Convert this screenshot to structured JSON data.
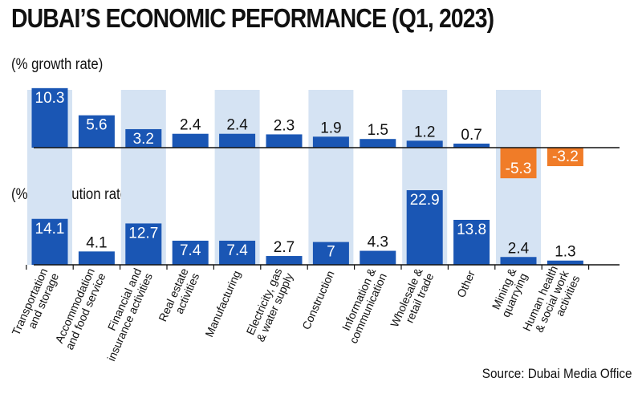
{
  "title": "DUBAI’S ECONOMIC PEFORMANCE (Q1, 2023)",
  "source": "Source: Dubai Media Office",
  "colors": {
    "blue": "#1a56b4",
    "orange": "#f07c28",
    "shade": "#d5e3f3",
    "axis": "#111111"
  },
  "chart_data": [
    {
      "type": "bar",
      "title": "% growth rate",
      "label": "(% growth rate)",
      "categories": [
        "Transportation and storage",
        "Accommodation and food service",
        "Financial and insurance activities",
        "Real estate activities",
        "Manufacturing",
        "Electricity, gas & water supply",
        "Construction",
        "Information & communication",
        "Wholesale & retail trade",
        "Other",
        "Mining & quarrying",
        "Human health & social work activities"
      ],
      "values": [
        10.3,
        5.6,
        3.2,
        2.4,
        2.4,
        2.3,
        1.9,
        1.5,
        1.2,
        0.7,
        -5.3,
        -3.2
      ],
      "value_labels": [
        "10.3",
        "5.6",
        "3.2",
        "2.4",
        "2.4",
        "2.3",
        "1.9",
        "1.5",
        "1.2",
        "0.7",
        "-5.3",
        "-3.2"
      ],
      "ylim": [
        -5.3,
        10.3
      ]
    },
    {
      "type": "bar",
      "title": "% contribution rate",
      "label": "(% contribution rate)",
      "categories": [
        "Transportation and storage",
        "Accommodation and food service",
        "Financial and insurance activities",
        "Real estate activities",
        "Manufacturing",
        "Electricity, gas & water supply",
        "Construction",
        "Information & communication",
        "Wholesale & retail trade",
        "Other",
        "Mining & quarrying",
        "Human health & social work activities"
      ],
      "values": [
        14.1,
        4.1,
        12.7,
        7.4,
        7.4,
        2.7,
        7,
        4.3,
        22.9,
        13.8,
        2.4,
        1.3
      ],
      "value_labels": [
        "14.1",
        "4.1",
        "12.7",
        "7.4",
        "7.4",
        "2.7",
        "7",
        "4.3",
        "22.9",
        "13.8",
        "2.4",
        "1.3"
      ],
      "ylim": [
        0,
        22.9
      ]
    }
  ],
  "category_lines": [
    [
      "Transportation",
      "and storage"
    ],
    [
      "Accommodation",
      "and food service"
    ],
    [
      "Financial and",
      "insurance activities"
    ],
    [
      "Real estate",
      "activities"
    ],
    [
      "Manufacturing"
    ],
    [
      "Electricity, gas",
      "& water supply"
    ],
    [
      "Construction"
    ],
    [
      "Information &",
      "communication"
    ],
    [
      "Wholesale &",
      "retail trade"
    ],
    [
      "Other"
    ],
    [
      "Mining &",
      "quarrying"
    ],
    [
      "Human health",
      "& social work",
      "activities"
    ]
  ]
}
